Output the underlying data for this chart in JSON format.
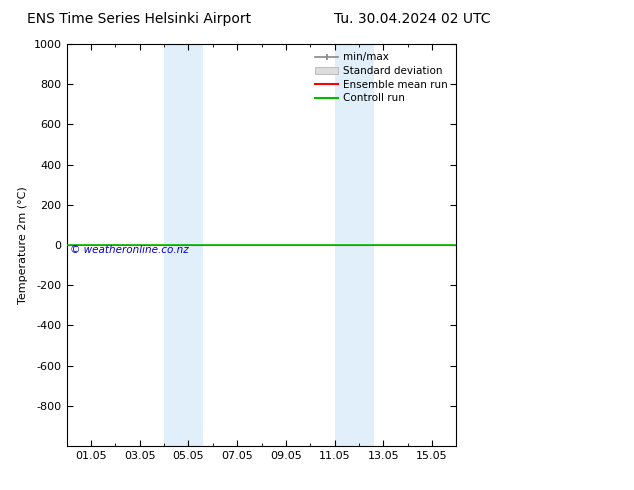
{
  "title_left": "ENS Time Series Helsinki Airport",
  "title_right": "Tu. 30.04.2024 02 UTC",
  "ylabel": "Temperature 2m (°C)",
  "ylim_top": -1000,
  "ylim_bottom": 1000,
  "yticks": [
    -800,
    -600,
    -400,
    -200,
    0,
    200,
    400,
    600,
    800,
    1000
  ],
  "xlim": [
    0,
    16
  ],
  "xtick_labels": [
    "01.05",
    "03.05",
    "05.05",
    "07.05",
    "09.05",
    "11.05",
    "13.05",
    "15.05"
  ],
  "xtick_positions": [
    1,
    3,
    5,
    7,
    9,
    11,
    13,
    15
  ],
  "shaded_bands": [
    {
      "x_start": 4.0,
      "x_end": 5.6
    },
    {
      "x_start": 11.0,
      "x_end": 12.6
    }
  ],
  "green_line_y": 0,
  "background_color": "#ffffff",
  "band_color": "#cce5f5",
  "band_alpha": 0.6,
  "plot_bg_color": "#ffffff",
  "border_color": "#000000",
  "green_line_color": "#00bb00",
  "red_line_color": "#ff0000",
  "legend_minmax_color": "#888888",
  "legend_stddev_color": "#cccccc",
  "watermark": "© weatheronline.co.nz",
  "watermark_color": "#0000cc",
  "title_fontsize": 10,
  "axis_fontsize": 8,
  "tick_fontsize": 8,
  "legend_fontsize": 7.5
}
